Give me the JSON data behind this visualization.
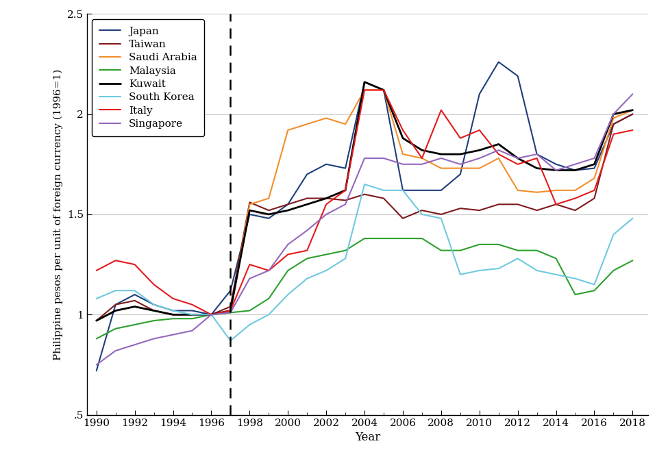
{
  "years": [
    1990,
    1991,
    1992,
    1993,
    1994,
    1995,
    1996,
    1997,
    1998,
    1999,
    2000,
    2001,
    2002,
    2003,
    2004,
    2005,
    2006,
    2007,
    2008,
    2009,
    2010,
    2011,
    2012,
    2013,
    2014,
    2015,
    2016,
    2017,
    2018
  ],
  "series": {
    "Japan": {
      "color": "#1f3e7c",
      "values": [
        0.72,
        1.05,
        1.1,
        1.05,
        1.02,
        1.02,
        1.0,
        1.12,
        1.5,
        1.48,
        1.55,
        1.7,
        1.75,
        1.73,
        2.16,
        2.12,
        1.62,
        1.62,
        1.62,
        1.7,
        2.1,
        2.26,
        2.19,
        1.8,
        1.75,
        1.72,
        1.73,
        1.95,
        2.0
      ],
      "linewidth": 1.5
    },
    "Taiwan": {
      "color": "#7f1a1a",
      "values": [
        0.97,
        1.05,
        1.07,
        1.02,
        1.0,
        1.0,
        1.0,
        1.04,
        1.56,
        1.52,
        1.55,
        1.58,
        1.58,
        1.57,
        1.6,
        1.58,
        1.48,
        1.52,
        1.5,
        1.53,
        1.52,
        1.55,
        1.55,
        1.52,
        1.55,
        1.52,
        1.58,
        1.95,
        2.0
      ],
      "linewidth": 1.5
    },
    "Saudi Arabia": {
      "color": "#f28e2b",
      "values": [
        0.97,
        1.02,
        1.04,
        1.02,
        1.0,
        1.0,
        1.0,
        1.01,
        1.55,
        1.58,
        1.92,
        1.95,
        1.98,
        1.95,
        2.12,
        2.12,
        1.8,
        1.78,
        1.73,
        1.73,
        1.73,
        1.78,
        1.62,
        1.61,
        1.62,
        1.62,
        1.68,
        1.98,
        2.02
      ],
      "linewidth": 1.5
    },
    "Malaysia": {
      "color": "#2ca02c",
      "values": [
        0.88,
        0.93,
        0.95,
        0.97,
        0.98,
        0.98,
        1.0,
        1.01,
        1.02,
        1.08,
        1.22,
        1.28,
        1.3,
        1.32,
        1.38,
        1.38,
        1.38,
        1.38,
        1.32,
        1.32,
        1.35,
        1.35,
        1.32,
        1.32,
        1.28,
        1.1,
        1.12,
        1.22,
        1.27
      ],
      "linewidth": 1.5
    },
    "Kuwait": {
      "color": "#000000",
      "values": [
        0.97,
        1.02,
        1.04,
        1.02,
        1.0,
        1.0,
        1.0,
        1.02,
        1.52,
        1.5,
        1.52,
        1.55,
        1.58,
        1.62,
        2.16,
        2.12,
        1.88,
        1.82,
        1.8,
        1.8,
        1.82,
        1.85,
        1.78,
        1.73,
        1.72,
        1.72,
        1.75,
        2.0,
        2.02
      ],
      "linewidth": 2.0
    },
    "South Korea": {
      "color": "#6ec9e0",
      "values": [
        1.08,
        1.12,
        1.12,
        1.05,
        1.02,
        1.0,
        1.0,
        0.87,
        0.95,
        1.0,
        1.1,
        1.18,
        1.22,
        1.28,
        1.65,
        1.62,
        1.62,
        1.5,
        1.48,
        1.2,
        1.22,
        1.23,
        1.28,
        1.22,
        1.2,
        1.18,
        1.15,
        1.4,
        1.48
      ],
      "linewidth": 1.5
    },
    "Italy": {
      "color": "#e41a1c",
      "values": [
        1.22,
        1.27,
        1.25,
        1.15,
        1.08,
        1.05,
        1.0,
        1.02,
        1.25,
        1.22,
        1.3,
        1.32,
        1.55,
        1.62,
        2.12,
        2.12,
        1.92,
        1.78,
        2.02,
        1.88,
        1.92,
        1.8,
        1.75,
        1.78,
        1.55,
        1.58,
        1.62,
        1.9,
        1.92
      ],
      "linewidth": 1.5
    },
    "Singapore": {
      "color": "#9467bd",
      "values": [
        0.75,
        0.82,
        0.85,
        0.88,
        0.9,
        0.92,
        1.0,
        1.01,
        1.18,
        1.22,
        1.35,
        1.42,
        1.5,
        1.55,
        1.78,
        1.78,
        1.75,
        1.75,
        1.78,
        1.75,
        1.78,
        1.82,
        1.78,
        1.8,
        1.72,
        1.75,
        1.78,
        2.0,
        2.1
      ],
      "linewidth": 1.5
    }
  },
  "xlabel": "Year",
  "ylabel": "Philippine pesos per unit of foreign currency (1996=1)",
  "ylim": [
    0.5,
    2.5
  ],
  "xlim": [
    1989.5,
    2018.8
  ],
  "yticks": [
    0.5,
    1.0,
    1.5,
    2.0,
    2.5
  ],
  "ytick_labels": [
    ".5",
    "1",
    "1.5",
    "2",
    "2.5"
  ],
  "xticks": [
    1990,
    1992,
    1994,
    1996,
    1998,
    2000,
    2002,
    2004,
    2006,
    2008,
    2010,
    2012,
    2014,
    2016,
    2018
  ],
  "dashed_vline_x": 1997,
  "background_color": "#ffffff",
  "grid_color": "#c8c8c8"
}
